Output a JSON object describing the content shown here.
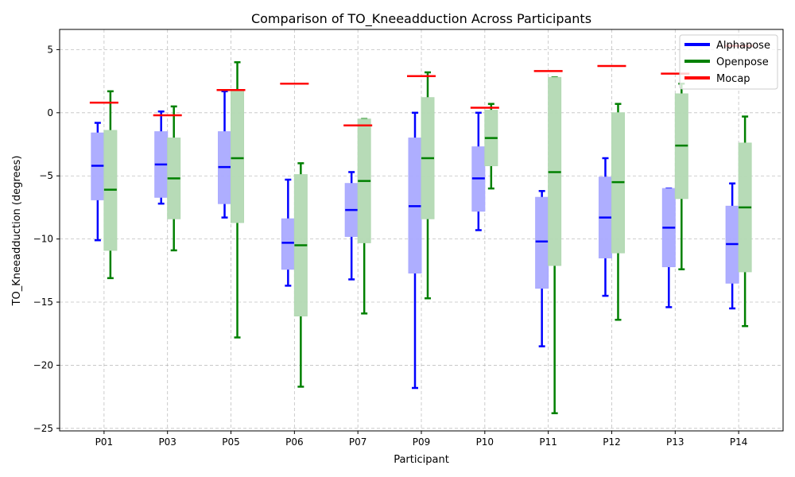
{
  "chart_data": {
    "type": "box",
    "title": "Comparison of TO_Kneeadduction Across Participants",
    "xlabel": "Participant",
    "ylabel": "TO_Kneeadduction (degrees)",
    "ylim": [
      -25.2,
      6.6
    ],
    "yticks": [
      5,
      0,
      -5,
      -10,
      -15,
      -20,
      -25
    ],
    "ytick_labels": [
      "5",
      "0",
      "−5",
      "−10",
      "−15",
      "−20",
      "−25"
    ],
    "grid": true,
    "legend_position": "top-right",
    "categories": [
      "P01",
      "P03",
      "P05",
      "P06",
      "P07",
      "P09",
      "P10",
      "P11",
      "P12",
      "P13",
      "P14"
    ],
    "series": [
      {
        "name": "Alphapose",
        "color": "#0000ff",
        "fill": "#aaaaff",
        "boxes": [
          {
            "whislo": -10.1,
            "q1": -6.9,
            "med": -4.2,
            "q3": -1.6,
            "whishi": -0.8
          },
          {
            "whislo": -7.2,
            "q1": -6.7,
            "med": -4.1,
            "q3": -1.5,
            "whishi": 0.1
          },
          {
            "whislo": -8.3,
            "q1": -7.2,
            "med": -4.3,
            "q3": -1.5,
            "whishi": 1.7
          },
          {
            "whislo": -13.7,
            "q1": -12.4,
            "med": -10.3,
            "q3": -8.4,
            "whishi": -5.3
          },
          {
            "whislo": -13.2,
            "q1": -9.8,
            "med": -7.7,
            "q3": -5.6,
            "whishi": -4.7
          },
          {
            "whislo": -21.8,
            "q1": -12.7,
            "med": -7.4,
            "q3": -2.0,
            "whishi": 0.0
          },
          {
            "whislo": -9.3,
            "q1": -7.8,
            "med": -5.2,
            "q3": -2.7,
            "whishi": 0.0
          },
          {
            "whislo": -18.5,
            "q1": -13.9,
            "med": -10.2,
            "q3": -6.7,
            "whishi": -6.2
          },
          {
            "whislo": -14.5,
            "q1": -11.5,
            "med": -8.3,
            "q3": -5.1,
            "whishi": -3.6
          },
          {
            "whislo": -15.4,
            "q1": -12.2,
            "med": -9.1,
            "q3": -6.0,
            "whishi": -6.0
          },
          {
            "whislo": -15.5,
            "q1": -13.5,
            "med": -10.4,
            "q3": -7.4,
            "whishi": -5.6
          }
        ]
      },
      {
        "name": "Openpose",
        "color": "#008000",
        "fill": "#b3d9b3",
        "boxes": [
          {
            "whislo": -13.1,
            "q1": -10.9,
            "med": -6.1,
            "q3": -1.4,
            "whishi": 1.7
          },
          {
            "whislo": -10.9,
            "q1": -8.4,
            "med": -5.2,
            "q3": -2.0,
            "whishi": 0.5
          },
          {
            "whislo": -17.8,
            "q1": -8.7,
            "med": -3.6,
            "q3": 1.8,
            "whishi": 4.0
          },
          {
            "whislo": -21.7,
            "q1": -16.1,
            "med": -10.5,
            "q3": -4.9,
            "whishi": -4.0
          },
          {
            "whislo": -15.9,
            "q1": -10.3,
            "med": -5.4,
            "q3": -0.5,
            "whishi": -0.5
          },
          {
            "whislo": -14.7,
            "q1": -8.4,
            "med": -3.6,
            "q3": 1.2,
            "whishi": 3.2
          },
          {
            "whislo": -6.0,
            "q1": -4.2,
            "med": -2.0,
            "q3": 0.2,
            "whishi": 0.7
          },
          {
            "whislo": -23.8,
            "q1": -12.1,
            "med": -4.7,
            "q3": 2.8,
            "whishi": 2.8
          },
          {
            "whislo": -16.4,
            "q1": -11.1,
            "med": -5.5,
            "q3": 0.0,
            "whishi": 0.7
          },
          {
            "whislo": -12.4,
            "q1": -6.8,
            "med": -2.6,
            "q3": 1.5,
            "whishi": 2.3
          },
          {
            "whislo": -16.9,
            "q1": -12.6,
            "med": -7.5,
            "q3": -2.4,
            "whishi": -0.3
          }
        ]
      },
      {
        "name": "Mocap",
        "color": "#ff0000",
        "values": [
          0.8,
          -0.2,
          1.8,
          2.3,
          -1.0,
          2.9,
          0.4,
          3.3,
          3.7,
          3.1,
          5.3
        ]
      }
    ]
  }
}
